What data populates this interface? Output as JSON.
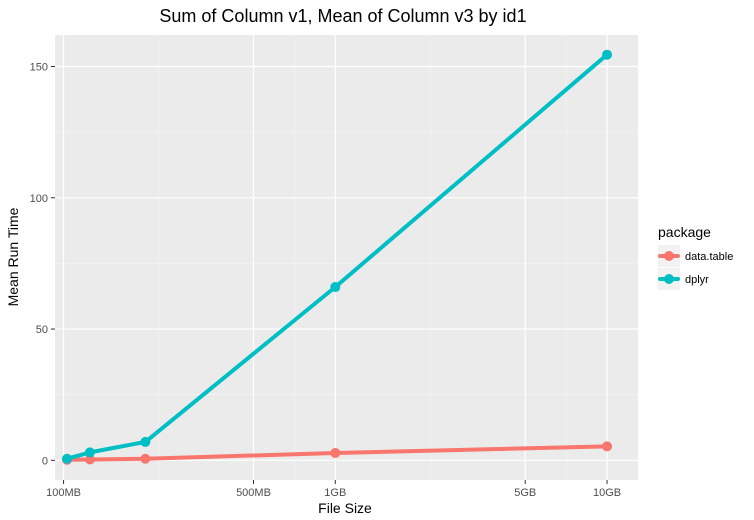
{
  "chart_data": {
    "type": "line",
    "title": "Sum of Column v1, Mean of Column v3 by id1",
    "xlabel": "File Size",
    "ylabel": "Mean Run Time",
    "x_scale": "log10",
    "x_unit": "MB",
    "x_ticks": [
      {
        "value": 100,
        "label": "100MB"
      },
      {
        "value": 500,
        "label": "500MB"
      },
      {
        "value": 1000,
        "label": "1GB"
      },
      {
        "value": 5000,
        "label": "5GB"
      },
      {
        "value": 10000,
        "label": "10GB"
      }
    ],
    "xlim": [
      93,
      13000
    ],
    "y_ticks": [
      0,
      50,
      100,
      150
    ],
    "ylim": [
      -7.5,
      162
    ],
    "grid": true,
    "legend": {
      "title": "package",
      "position": "right"
    },
    "series": [
      {
        "name": "data.table",
        "color": "#F8766D",
        "x": [
          103,
          125,
          200,
          1000,
          10000
        ],
        "y": [
          0.2,
          0.3,
          0.6,
          2.8,
          5.3
        ]
      },
      {
        "name": "dplyr",
        "color": "#00BFC4",
        "x": [
          103,
          125,
          200,
          1000,
          10000
        ],
        "y": [
          0.6,
          3.0,
          7.0,
          66.0,
          154.5
        ]
      }
    ]
  }
}
